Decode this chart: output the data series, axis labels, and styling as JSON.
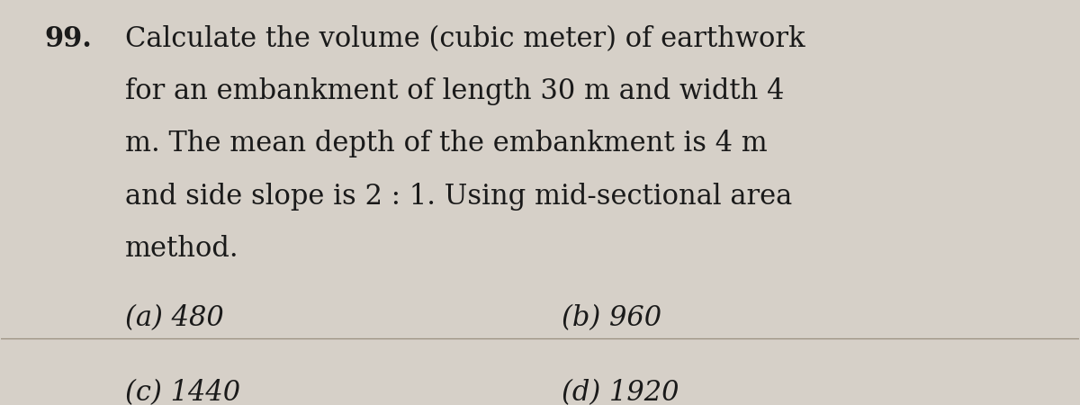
{
  "background_color": "#d6d0c8",
  "question_number": "99.",
  "question_text_lines": [
    "Calculate the volume (cubic meter) of earthwork",
    "for an embankment of length 30 m and width 4",
    "m. The mean depth of the embankment is 4 m",
    "and side slope is 2 : 1. Using mid-sectional area",
    "method."
  ],
  "options": [
    {
      "label": "(a)",
      "value": "480",
      "col": 0
    },
    {
      "label": "(b)",
      "value": "960",
      "col": 1
    },
    {
      "label": "(c)",
      "value": "1440",
      "col": 0
    },
    {
      "label": "(d)",
      "value": "1920",
      "col": 1
    }
  ],
  "question_number_fontsize": 22,
  "text_fontsize": 22,
  "option_fontsize": 22,
  "text_color": "#1a1a1a",
  "line_color": "#9a9080",
  "font_family": "serif"
}
